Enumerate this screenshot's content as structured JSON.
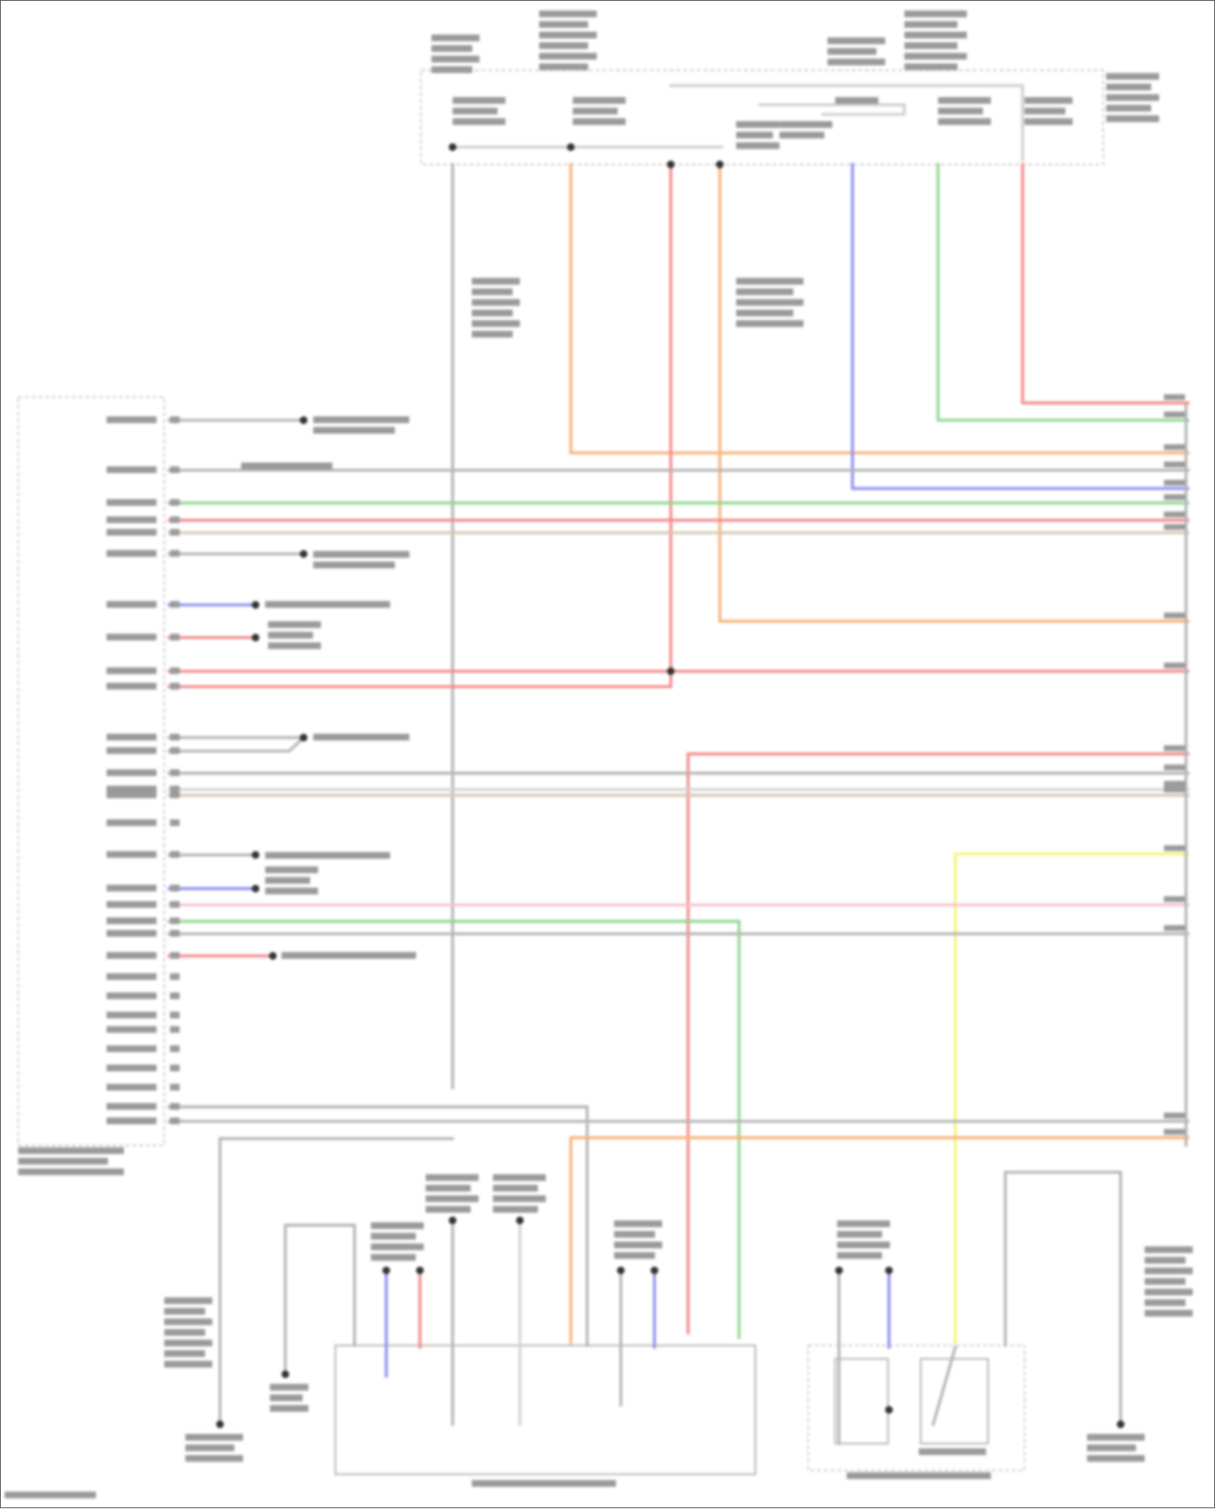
{
  "wire_colors": {
    "gray": "#b5b5b5",
    "light_gray": "#d4d4d4",
    "orange": "#f7b27a",
    "red": "#f48a8a",
    "blue": "#8f8ff0",
    "green": "#8fd88f",
    "tan": "#d9c7b0",
    "pink": "#f7c4cc",
    "yellow": "#f4f47a"
  }
}
